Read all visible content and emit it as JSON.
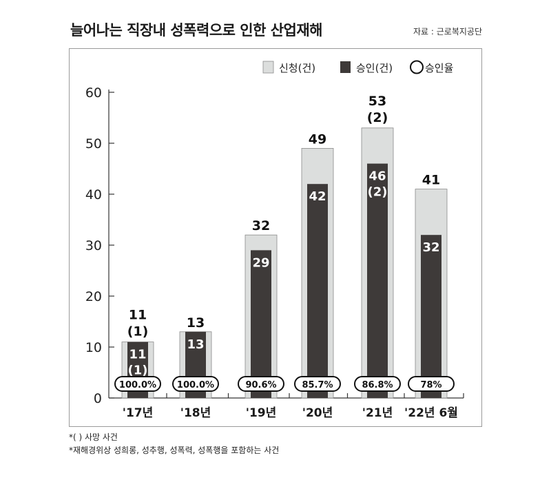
{
  "header": {
    "title": "늘어나는 직장내 성폭력으로 인한 산업재해",
    "source": "자료 : 근로복지공단"
  },
  "footnotes": [
    "*( ) 사망 사건",
    "*재해경위상 성희롱, 성추행, 성폭력, 성폭행을 포함하는 사건"
  ],
  "colors": {
    "applied": "#dcdedd",
    "approved": "#3e3a39",
    "axis": "#333333"
  },
  "chart_data": {
    "type": "bar",
    "categories": [
      "'17년",
      "'18년",
      "'19년",
      "'20년",
      "'21년",
      "'22년 6월"
    ],
    "series": [
      {
        "name": "신청(건)",
        "values": [
          11,
          13,
          32,
          49,
          53,
          41
        ]
      },
      {
        "name": "승인(건)",
        "values": [
          11,
          13,
          29,
          42,
          46,
          32
        ]
      }
    ],
    "deaths_applied": [
      1,
      null,
      null,
      null,
      2,
      null
    ],
    "deaths_approved": [
      1,
      null,
      null,
      null,
      2,
      null
    ],
    "approval_rate": [
      "100.0%",
      "100.0%",
      "90.6%",
      "85.7%",
      "86.8%",
      "78%"
    ],
    "rate_legend": "승인율",
    "legend_position": "top-right",
    "yticks": [
      0,
      10,
      20,
      30,
      40,
      50,
      60
    ],
    "ylim": [
      0,
      60
    ],
    "grid": false
  }
}
